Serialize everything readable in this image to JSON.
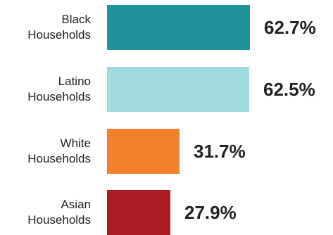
{
  "chart_data": {
    "type": "bar",
    "orientation": "horizontal",
    "categories": [
      [
        "Black",
        "Households"
      ],
      [
        "Latino",
        "Households"
      ],
      [
        "White",
        "Households"
      ],
      [
        "Asian",
        "Households"
      ]
    ],
    "values": [
      62.7,
      62.5,
      31.7,
      27.9
    ],
    "value_labels": [
      "62.7%",
      "62.5%",
      "31.7%",
      "27.9%"
    ],
    "colors": [
      "#1f9198",
      "#a0dadd",
      "#f47f2d",
      "#aa1c24"
    ],
    "xlim": [
      0,
      62.7
    ],
    "grid": false
  }
}
